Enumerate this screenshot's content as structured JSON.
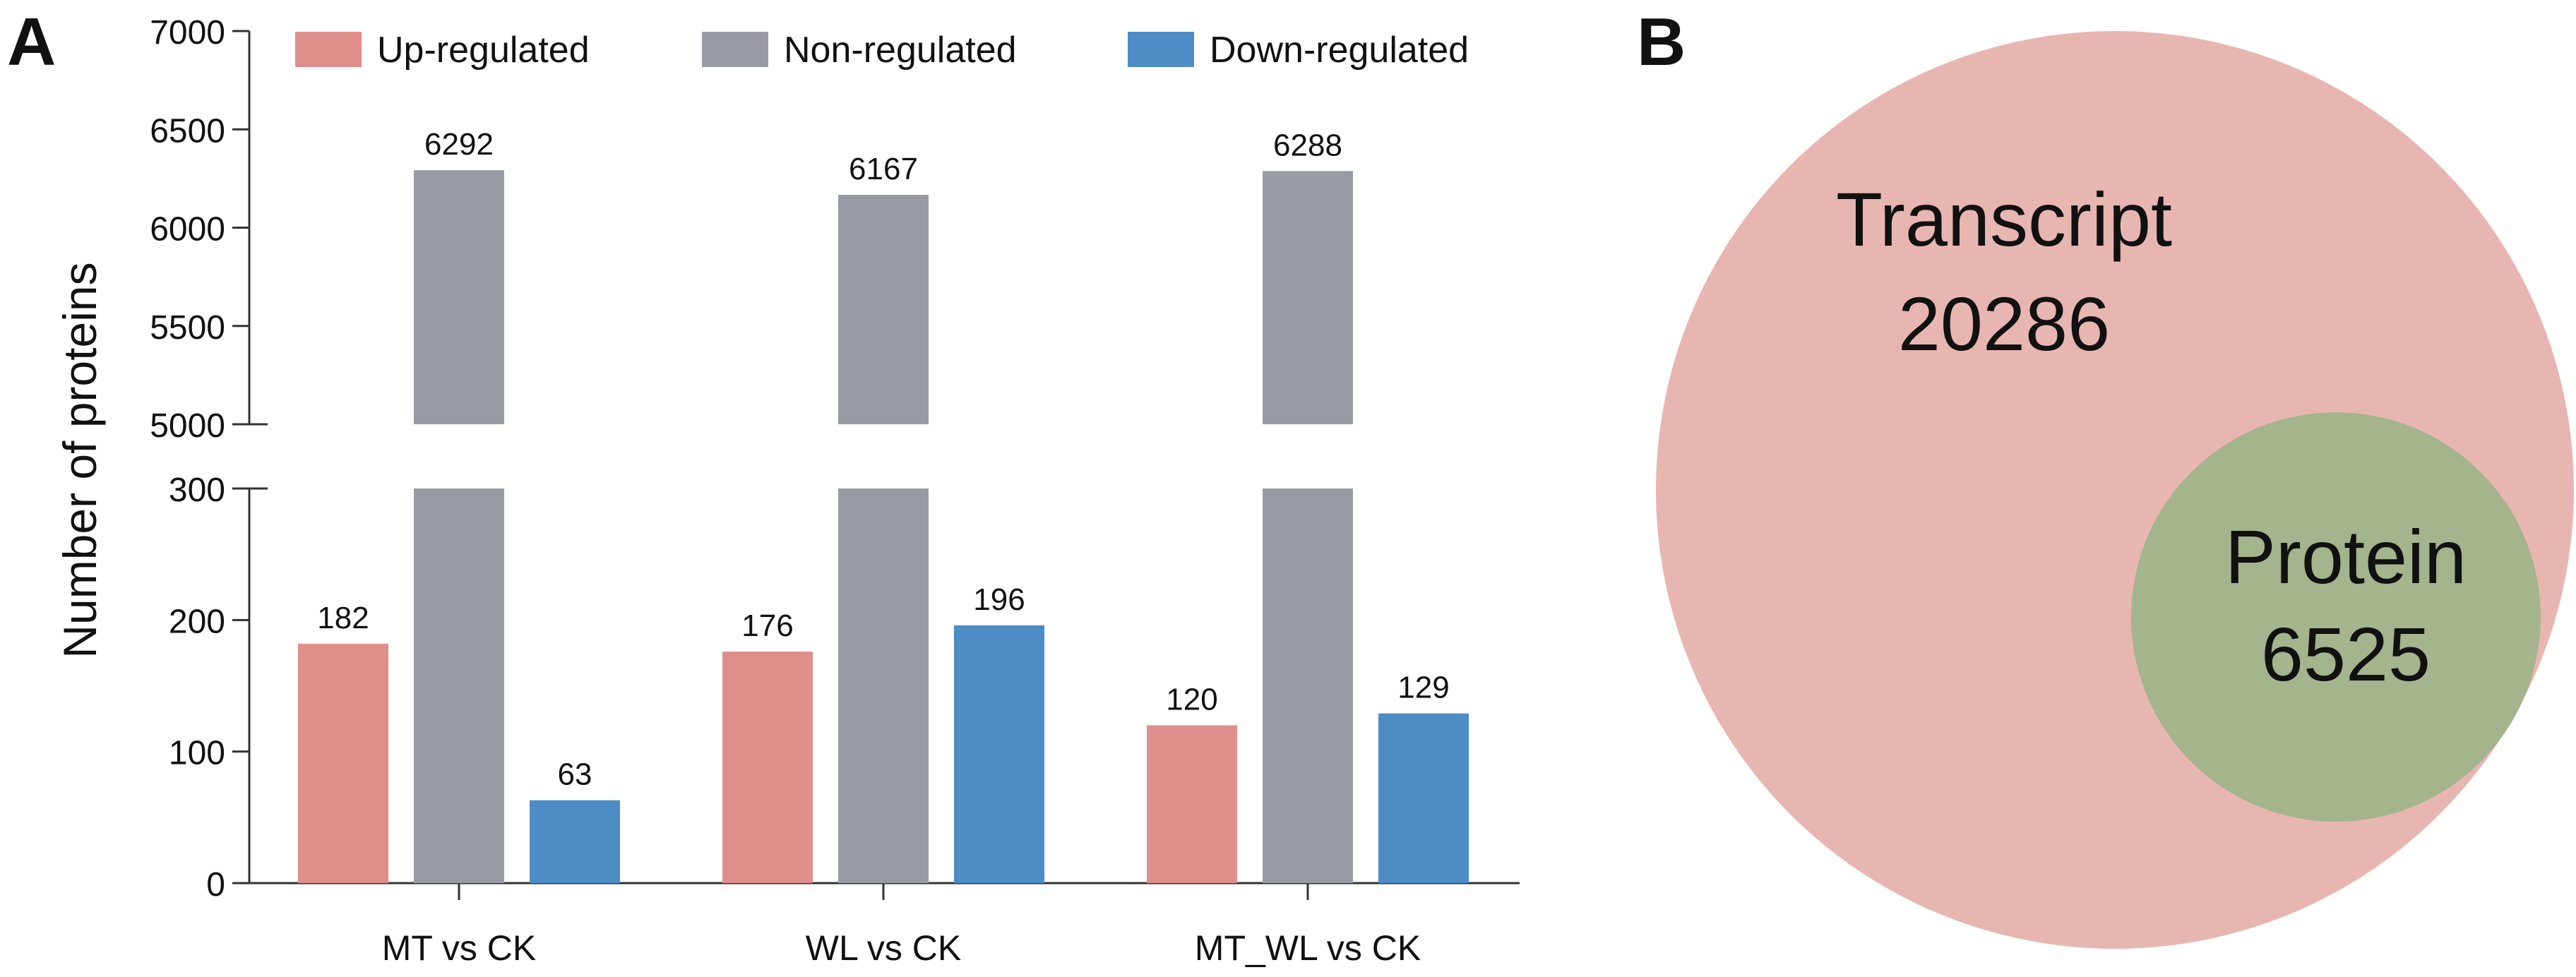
{
  "panels": {
    "a_label": "A",
    "b_label": "B"
  },
  "chart_data": [
    {
      "type": "bar",
      "title": "",
      "xlabel": "",
      "ylabel": "Number of proteins",
      "broken_axis": true,
      "ylim_lower": [
        0,
        300
      ],
      "ylim_upper": [
        5000,
        7000
      ],
      "yticks_lower": [
        "0",
        "100",
        "200",
        "300"
      ],
      "yticks_upper": [
        "5000",
        "5500",
        "6000",
        "6500",
        "7000"
      ],
      "categories": [
        "MT vs CK",
        "WL  vs CK",
        "MT_WL vs  CK"
      ],
      "series": [
        {
          "name": "Up-regulated",
          "color": "#DE8F8B",
          "values": [
            182,
            176,
            120
          ]
        },
        {
          "name": "Non-regulated",
          "color": "#989BA3",
          "values": [
            6292,
            6167,
            6288
          ]
        },
        {
          "name": "Down-regulated",
          "color": "#4E8CC6",
          "values": [
            63,
            196,
            129
          ]
        }
      ],
      "legend": "top"
    },
    {
      "type": "venn",
      "sets": [
        {
          "name": "Transcript",
          "count": "20286",
          "color": "#E8B6B1"
        },
        {
          "name": "Protein",
          "count": "6525",
          "color": "#A4B48C"
        }
      ]
    }
  ]
}
